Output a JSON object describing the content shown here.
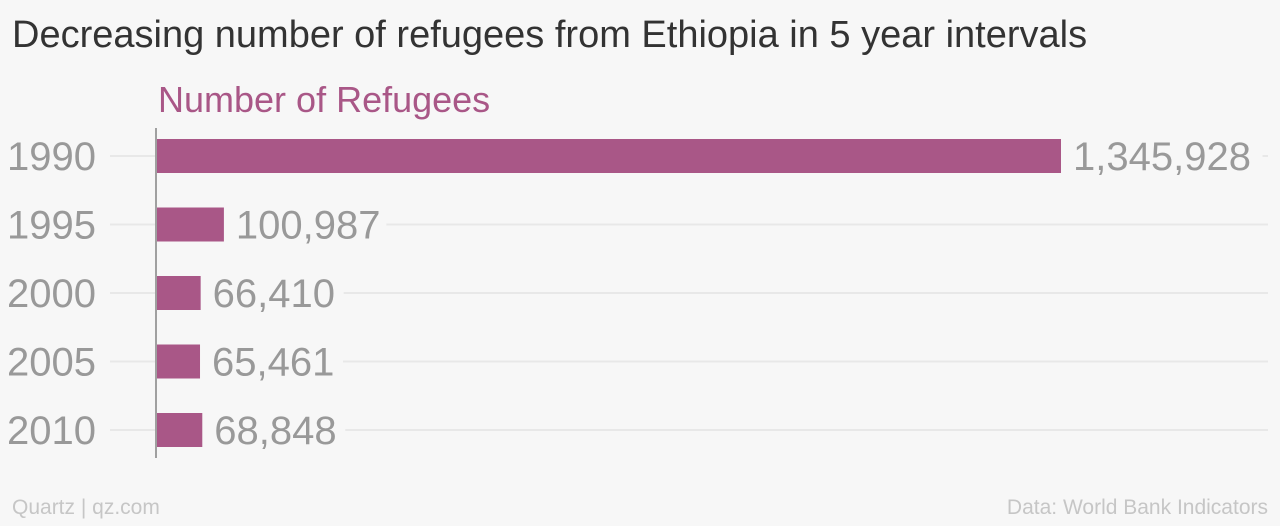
{
  "title": "Decreasing number of refugees from Ethiopia in 5 year intervals",
  "footer": {
    "source_left": "Quartz | qz.com",
    "source_right": "Data: World Bank Indicators"
  },
  "colors": {
    "bar": "#a95787",
    "series_label": "#a95787",
    "tick_label": "#999999",
    "value_label": "#999999",
    "gridline": "#e8e8e8",
    "axis": "#a0a0a0"
  },
  "chart_data": {
    "type": "bar",
    "orientation": "horizontal",
    "title": "Decreasing number of refugees from Ethiopia in 5 year intervals",
    "categories": [
      "1990",
      "1995",
      "2000",
      "2005",
      "2010"
    ],
    "series": [
      {
        "name": "Number of Refugees",
        "values": [
          1345928,
          100987,
          66410,
          65461,
          68848
        ],
        "value_labels": [
          "1,345,928",
          "100,987",
          "66,410",
          "65,461",
          "68,848"
        ]
      }
    ],
    "xlim": [
      0,
      1345928
    ],
    "grid": true,
    "legend": "top-left"
  }
}
